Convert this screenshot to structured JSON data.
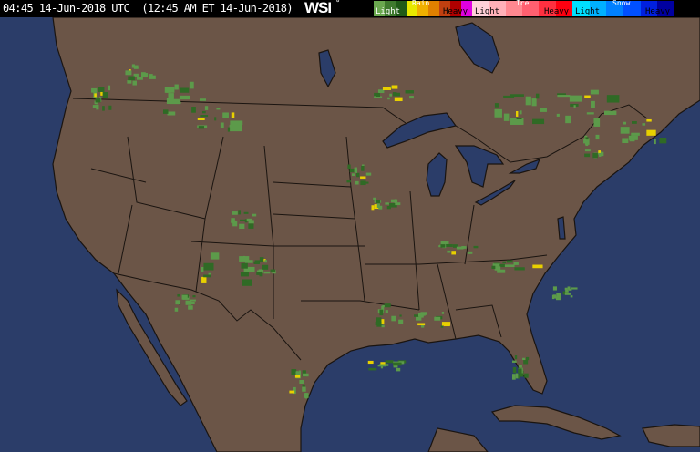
{
  "header": {
    "timestamp": "04:45 14-Jun-2018 UTC  (12:45 AM ET 14-Jun-2018)",
    "logo": "WSI",
    "logo_mark": "°"
  },
  "legend": {
    "rain": {
      "label": "Rain",
      "light": "Light",
      "heavy": "Heavy",
      "colors": [
        "#6aa84f",
        "#3f7a2e",
        "#1f5a17",
        "#e8e800",
        "#f0b000",
        "#e08000",
        "#c04010",
        "#b00000",
        "#e000e0"
      ]
    },
    "ice": {
      "label": "Ice",
      "light": "Light",
      "heavy": "Heavy",
      "colors": [
        "#ffd0d8",
        "#ffb0b8",
        "#ff8890",
        "#ff6070",
        "#ff3040",
        "#ff0010"
      ]
    },
    "snow": {
      "label": "Snow",
      "light": "Light",
      "heavy": "Heavy",
      "colors": [
        "#00e0ff",
        "#00b0ff",
        "#0080ff",
        "#0050ff",
        "#0020e0",
        "#0000a0"
      ]
    }
  },
  "map": {
    "land_color": "#6b5547",
    "water_color": "#2b3d69",
    "border_color": "#1a1410",
    "radar_light": "#5c9a4a",
    "radar_dark": "#2f6a25",
    "radar_yellow": "#e8d000"
  }
}
